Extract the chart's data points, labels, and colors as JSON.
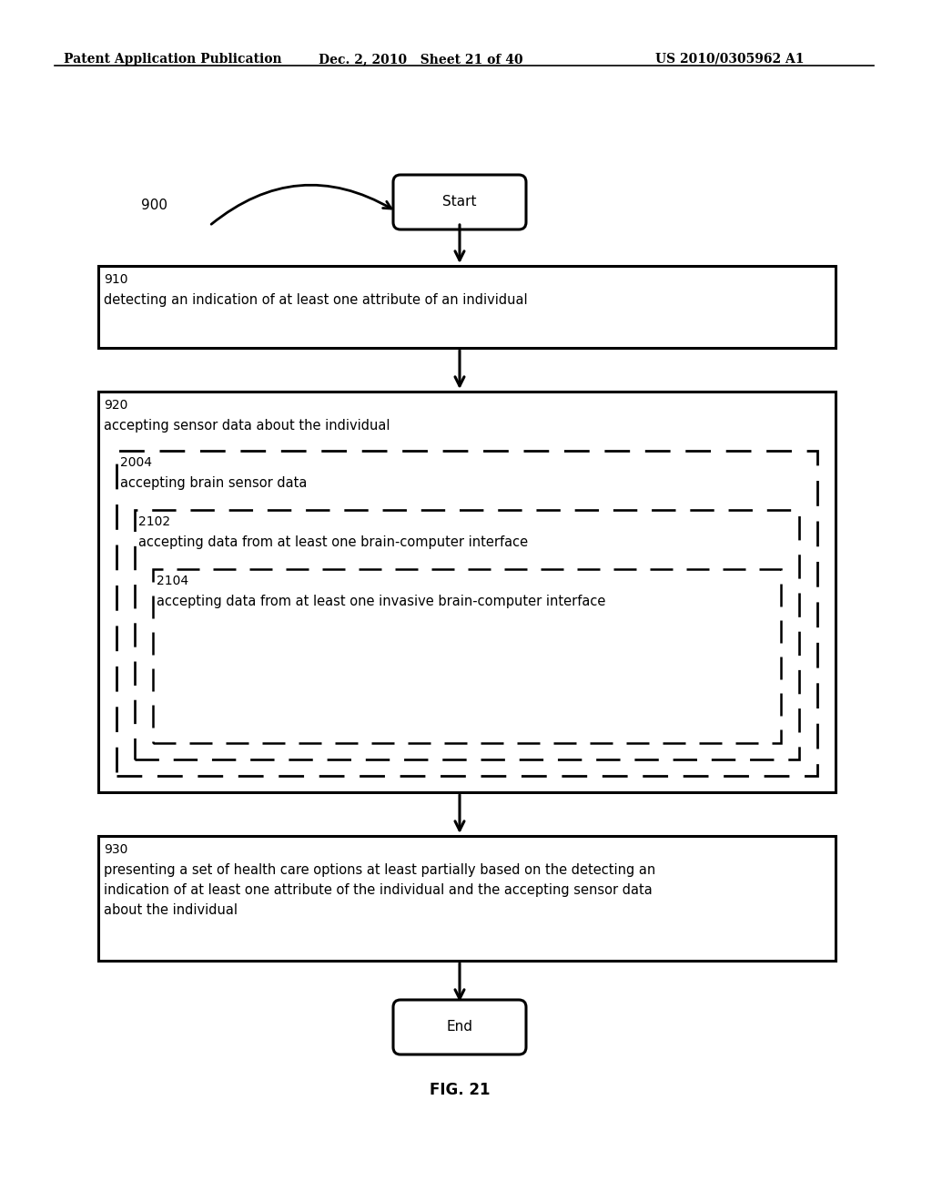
{
  "header_left": "Patent Application Publication",
  "header_mid": "Dec. 2, 2010   Sheet 21 of 40",
  "header_right": "US 2010/0305962 A1",
  "fig_label": "FIG. 21",
  "start_label": "Start",
  "end_label": "End",
  "ref_900": "900",
  "box_910_id": "910",
  "box_910_text": "detecting an indication of at least one attribute of an individual",
  "box_920_id": "920",
  "box_920_text": "accepting sensor data about the individual",
  "box_2004_id": "2004",
  "box_2004_text": "accepting brain sensor data",
  "box_2102_id": "2102",
  "box_2102_text": "accepting data from at least one brain-computer interface",
  "box_2104_id": "2104",
  "box_2104_text": "accepting data from at least one invasive brain-computer interface",
  "box_930_id": "930",
  "box_930_line1": "presenting a set of health care options at least partially based on the detecting an",
  "box_930_line2": "indication of at least one attribute of the individual and the accepting sensor data",
  "box_930_line3": "about the individual",
  "bg_color": "#ffffff",
  "text_color": "#000000"
}
